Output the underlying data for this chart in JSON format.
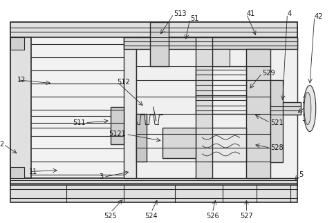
{
  "fig_width": 4.83,
  "fig_height": 3.23,
  "dpi": 100,
  "bg_color": "#ffffff",
  "lc": "#2a2a2a",
  "lw": 0.8
}
